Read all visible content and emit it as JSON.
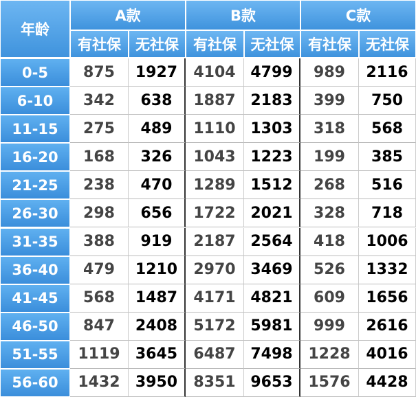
{
  "header": {
    "title": "年龄",
    "groups": [
      "A款",
      "B款",
      "C款"
    ],
    "subheaders": [
      "有社保",
      "无社保",
      "有社保",
      "无社保",
      "有社保",
      "无社保"
    ]
  },
  "table": {
    "rows": [
      [
        "0-5",
        875,
        1927,
        4104,
        4799,
        989,
        2116
      ],
      [
        "6-10",
        342,
        638,
        1887,
        2183,
        399,
        750
      ],
      [
        "11-15",
        275,
        489,
        1110,
        1303,
        318,
        568
      ],
      [
        "16-20",
        168,
        326,
        1043,
        1223,
        199,
        385
      ],
      [
        "21-25",
        238,
        470,
        1289,
        1512,
        268,
        516
      ],
      [
        "26-30",
        298,
        656,
        1722,
        2021,
        328,
        718
      ],
      [
        "31-35",
        388,
        919,
        2187,
        2564,
        418,
        1006
      ],
      [
        "36-40",
        479,
        1210,
        2970,
        3469,
        526,
        1332
      ],
      [
        "41-45",
        568,
        1487,
        4171,
        4821,
        609,
        1656
      ],
      [
        "46-50",
        847,
        2408,
        5172,
        5981,
        999,
        2616
      ],
      [
        "51-55",
        1119,
        3645,
        6487,
        7498,
        1228,
        4016
      ],
      [
        "56-60",
        1432,
        3950,
        8351,
        9653,
        1576,
        4428
      ]
    ]
  }
}
